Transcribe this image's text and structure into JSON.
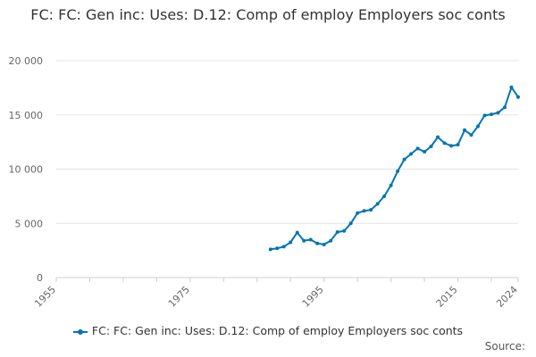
{
  "chart_data": {
    "type": "line",
    "title": "FC: FC: Gen inc: Uses: D.12: Comp of employ Employers soc conts",
    "xlabel": "",
    "ylabel": "",
    "xlim": [
      1955,
      2024
    ],
    "ylim": [
      0,
      20000
    ],
    "x_ticks": [
      1955,
      1975,
      1995,
      2015,
      2024
    ],
    "x_tick_labels": [
      "1955",
      "1975",
      "1995",
      "2015",
      "2024"
    ],
    "y_ticks": [
      0,
      5000,
      10000,
      15000,
      20000
    ],
    "y_tick_labels": [
      "0",
      "5 000",
      "10 000",
      "15 000",
      "20 000"
    ],
    "grid": "horizontal",
    "legend_position": "bottom",
    "series": [
      {
        "name": "FC: FC: Gen inc: Uses: D.12: Comp of employ Employers soc conts",
        "color": "#0075b4",
        "x": [
          1987,
          1988,
          1989,
          1990,
          1991,
          1992,
          1993,
          1994,
          1995,
          1996,
          1997,
          1998,
          1999,
          2000,
          2001,
          2002,
          2003,
          2004,
          2005,
          2006,
          2007,
          2008,
          2009,
          2010,
          2011,
          2012,
          2013,
          2014,
          2015,
          2016,
          2017,
          2018,
          2019,
          2020,
          2021,
          2022,
          2023,
          2024
        ],
        "values": [
          2600,
          2700,
          2850,
          3250,
          4150,
          3400,
          3500,
          3150,
          3050,
          3400,
          4200,
          4300,
          5000,
          5950,
          6150,
          6250,
          6800,
          7500,
          8500,
          9800,
          10900,
          11400,
          11900,
          11600,
          12100,
          12950,
          12400,
          12150,
          12250,
          13600,
          13150,
          13950,
          14950,
          15050,
          15200,
          15700,
          17550,
          16650
        ]
      }
    ]
  },
  "legend": {
    "label": "FC: FC: Gen inc: Uses: D.12: Comp of employ Employers soc conts"
  },
  "source": {
    "label": "Source:"
  }
}
